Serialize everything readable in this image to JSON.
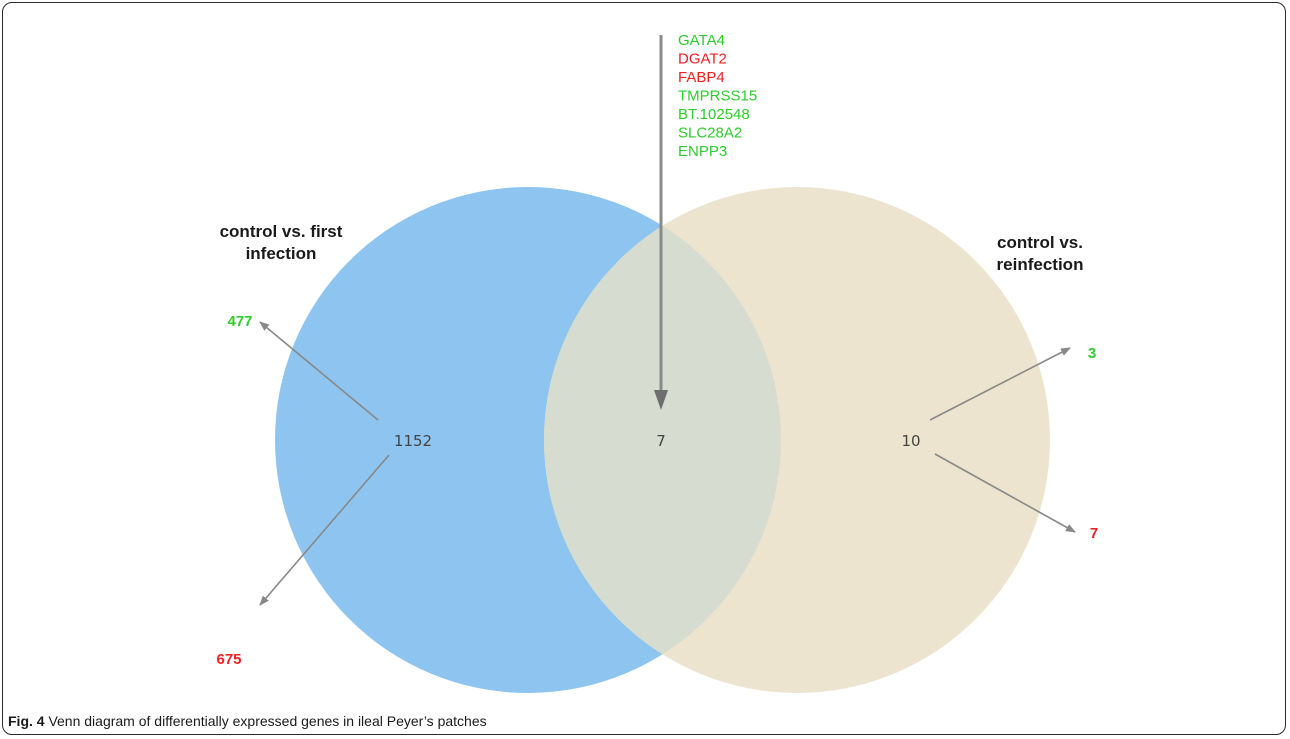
{
  "colors": {
    "set_a_fill": "#8ec5f0",
    "set_b_fill": "#ece4cf",
    "overlap_fill": "#d6dcd0",
    "up_green": "#2ecc2e",
    "down_red": "#ee2222",
    "arrow": "#888888"
  },
  "sets": {
    "a": {
      "title_line1": "control vs. first",
      "title_line2": "infection",
      "unique_count": "1152",
      "up": "477",
      "down": "675"
    },
    "b": {
      "title_line1": "control vs.",
      "title_line2": "reinfection",
      "unique_count": "10",
      "up": "3",
      "down": "7"
    },
    "overlap_count": "7"
  },
  "shared_genes": [
    {
      "name": "GATA4",
      "direction": "up"
    },
    {
      "name": "DGAT2",
      "direction": "down"
    },
    {
      "name": "FABP4",
      "direction": "down"
    },
    {
      "name": "TMPRSS15",
      "direction": "up"
    },
    {
      "name": "BT.102548",
      "direction": "up"
    },
    {
      "name": "SLC28A2",
      "direction": "up"
    },
    {
      "name": "ENPP3",
      "direction": "up"
    }
  ],
  "caption": {
    "label": "Fig. 4",
    "text": " Venn diagram of differentially expressed genes in ileal Peyer’s patches"
  }
}
